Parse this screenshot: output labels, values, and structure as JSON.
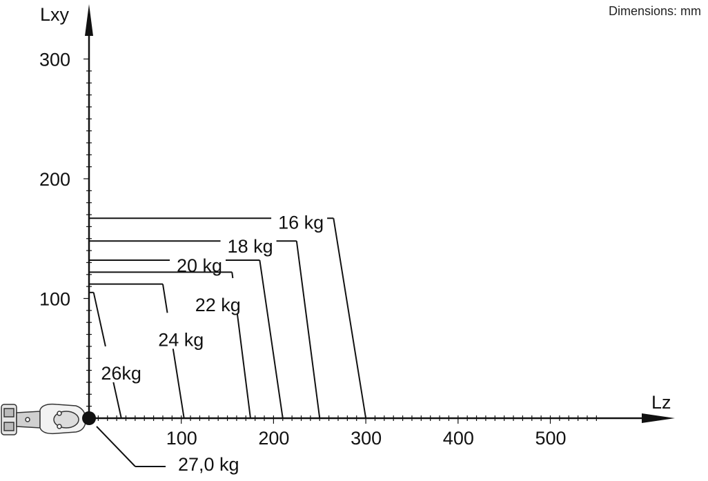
{
  "note": "Dimensions: mm",
  "chart_data": {
    "type": "line",
    "xlabel": "Lz",
    "ylabel": "Lxy",
    "x_ticks": [
      "100",
      "200",
      "300",
      "400",
      "500"
    ],
    "y_ticks": [
      "100",
      "200",
      "300"
    ],
    "xlim": [
      0,
      600
    ],
    "ylim": [
      0,
      330
    ],
    "series": [
      {
        "name": "16 kg",
        "lxy_max": 167,
        "lz_top": 265,
        "lz_base": 300
      },
      {
        "name": "18 kg",
        "lxy_max": 148,
        "lz_top": 225,
        "lz_base": 250
      },
      {
        "name": "20 kg",
        "lxy_max": 132,
        "lz_top": 185,
        "lz_base": 210
      },
      {
        "name": "22 kg",
        "lxy_max": 122,
        "lz_top": 155,
        "lz_base": 175
      },
      {
        "name": "24 kg",
        "lxy_max": 112,
        "lz_top": 80,
        "lz_base": 103
      },
      {
        "name": "26kg",
        "lxy_max": 105,
        "lz_top": 5,
        "lz_base": 35
      }
    ],
    "origin_load": "27,0 kg"
  }
}
